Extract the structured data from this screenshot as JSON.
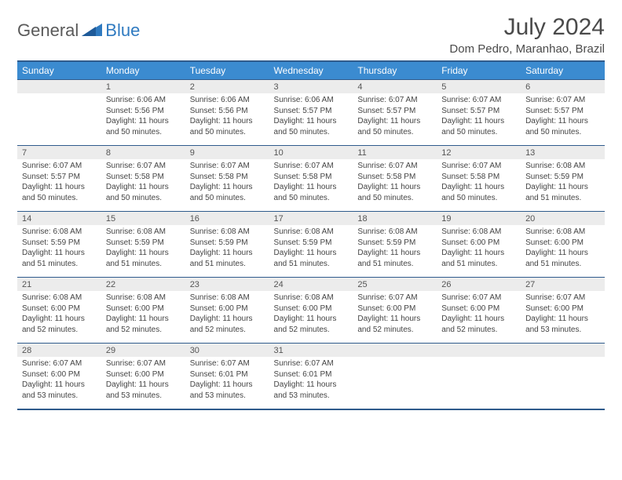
{
  "logo": {
    "general": "General",
    "blue": "Blue"
  },
  "title": "July 2024",
  "location": "Dom Pedro, Maranhao, Brazil",
  "colors": {
    "header_bg": "#3b8bd0",
    "header_text": "#ffffff",
    "border": "#2f5b8c",
    "daynum_bg": "#ececec",
    "body_text": "#444444",
    "logo_blue": "#2f7ac0",
    "logo_gray": "#5a5a5a"
  },
  "day_headers": [
    "Sunday",
    "Monday",
    "Tuesday",
    "Wednesday",
    "Thursday",
    "Friday",
    "Saturday"
  ],
  "weeks": [
    [
      null,
      {
        "n": "1",
        "sr": "Sunrise: 6:06 AM",
        "ss": "Sunset: 5:56 PM",
        "dl": "Daylight: 11 hours and 50 minutes."
      },
      {
        "n": "2",
        "sr": "Sunrise: 6:06 AM",
        "ss": "Sunset: 5:56 PM",
        "dl": "Daylight: 11 hours and 50 minutes."
      },
      {
        "n": "3",
        "sr": "Sunrise: 6:06 AM",
        "ss": "Sunset: 5:57 PM",
        "dl": "Daylight: 11 hours and 50 minutes."
      },
      {
        "n": "4",
        "sr": "Sunrise: 6:07 AM",
        "ss": "Sunset: 5:57 PM",
        "dl": "Daylight: 11 hours and 50 minutes."
      },
      {
        "n": "5",
        "sr": "Sunrise: 6:07 AM",
        "ss": "Sunset: 5:57 PM",
        "dl": "Daylight: 11 hours and 50 minutes."
      },
      {
        "n": "6",
        "sr": "Sunrise: 6:07 AM",
        "ss": "Sunset: 5:57 PM",
        "dl": "Daylight: 11 hours and 50 minutes."
      }
    ],
    [
      {
        "n": "7",
        "sr": "Sunrise: 6:07 AM",
        "ss": "Sunset: 5:57 PM",
        "dl": "Daylight: 11 hours and 50 minutes."
      },
      {
        "n": "8",
        "sr": "Sunrise: 6:07 AM",
        "ss": "Sunset: 5:58 PM",
        "dl": "Daylight: 11 hours and 50 minutes."
      },
      {
        "n": "9",
        "sr": "Sunrise: 6:07 AM",
        "ss": "Sunset: 5:58 PM",
        "dl": "Daylight: 11 hours and 50 minutes."
      },
      {
        "n": "10",
        "sr": "Sunrise: 6:07 AM",
        "ss": "Sunset: 5:58 PM",
        "dl": "Daylight: 11 hours and 50 minutes."
      },
      {
        "n": "11",
        "sr": "Sunrise: 6:07 AM",
        "ss": "Sunset: 5:58 PM",
        "dl": "Daylight: 11 hours and 50 minutes."
      },
      {
        "n": "12",
        "sr": "Sunrise: 6:07 AM",
        "ss": "Sunset: 5:58 PM",
        "dl": "Daylight: 11 hours and 50 minutes."
      },
      {
        "n": "13",
        "sr": "Sunrise: 6:08 AM",
        "ss": "Sunset: 5:59 PM",
        "dl": "Daylight: 11 hours and 51 minutes."
      }
    ],
    [
      {
        "n": "14",
        "sr": "Sunrise: 6:08 AM",
        "ss": "Sunset: 5:59 PM",
        "dl": "Daylight: 11 hours and 51 minutes."
      },
      {
        "n": "15",
        "sr": "Sunrise: 6:08 AM",
        "ss": "Sunset: 5:59 PM",
        "dl": "Daylight: 11 hours and 51 minutes."
      },
      {
        "n": "16",
        "sr": "Sunrise: 6:08 AM",
        "ss": "Sunset: 5:59 PM",
        "dl": "Daylight: 11 hours and 51 minutes."
      },
      {
        "n": "17",
        "sr": "Sunrise: 6:08 AM",
        "ss": "Sunset: 5:59 PM",
        "dl": "Daylight: 11 hours and 51 minutes."
      },
      {
        "n": "18",
        "sr": "Sunrise: 6:08 AM",
        "ss": "Sunset: 5:59 PM",
        "dl": "Daylight: 11 hours and 51 minutes."
      },
      {
        "n": "19",
        "sr": "Sunrise: 6:08 AM",
        "ss": "Sunset: 6:00 PM",
        "dl": "Daylight: 11 hours and 51 minutes."
      },
      {
        "n": "20",
        "sr": "Sunrise: 6:08 AM",
        "ss": "Sunset: 6:00 PM",
        "dl": "Daylight: 11 hours and 51 minutes."
      }
    ],
    [
      {
        "n": "21",
        "sr": "Sunrise: 6:08 AM",
        "ss": "Sunset: 6:00 PM",
        "dl": "Daylight: 11 hours and 52 minutes."
      },
      {
        "n": "22",
        "sr": "Sunrise: 6:08 AM",
        "ss": "Sunset: 6:00 PM",
        "dl": "Daylight: 11 hours and 52 minutes."
      },
      {
        "n": "23",
        "sr": "Sunrise: 6:08 AM",
        "ss": "Sunset: 6:00 PM",
        "dl": "Daylight: 11 hours and 52 minutes."
      },
      {
        "n": "24",
        "sr": "Sunrise: 6:08 AM",
        "ss": "Sunset: 6:00 PM",
        "dl": "Daylight: 11 hours and 52 minutes."
      },
      {
        "n": "25",
        "sr": "Sunrise: 6:07 AM",
        "ss": "Sunset: 6:00 PM",
        "dl": "Daylight: 11 hours and 52 minutes."
      },
      {
        "n": "26",
        "sr": "Sunrise: 6:07 AM",
        "ss": "Sunset: 6:00 PM",
        "dl": "Daylight: 11 hours and 52 minutes."
      },
      {
        "n": "27",
        "sr": "Sunrise: 6:07 AM",
        "ss": "Sunset: 6:00 PM",
        "dl": "Daylight: 11 hours and 53 minutes."
      }
    ],
    [
      {
        "n": "28",
        "sr": "Sunrise: 6:07 AM",
        "ss": "Sunset: 6:00 PM",
        "dl": "Daylight: 11 hours and 53 minutes."
      },
      {
        "n": "29",
        "sr": "Sunrise: 6:07 AM",
        "ss": "Sunset: 6:00 PM",
        "dl": "Daylight: 11 hours and 53 minutes."
      },
      {
        "n": "30",
        "sr": "Sunrise: 6:07 AM",
        "ss": "Sunset: 6:01 PM",
        "dl": "Daylight: 11 hours and 53 minutes."
      },
      {
        "n": "31",
        "sr": "Sunrise: 6:07 AM",
        "ss": "Sunset: 6:01 PM",
        "dl": "Daylight: 11 hours and 53 minutes."
      },
      null,
      null,
      null
    ]
  ]
}
